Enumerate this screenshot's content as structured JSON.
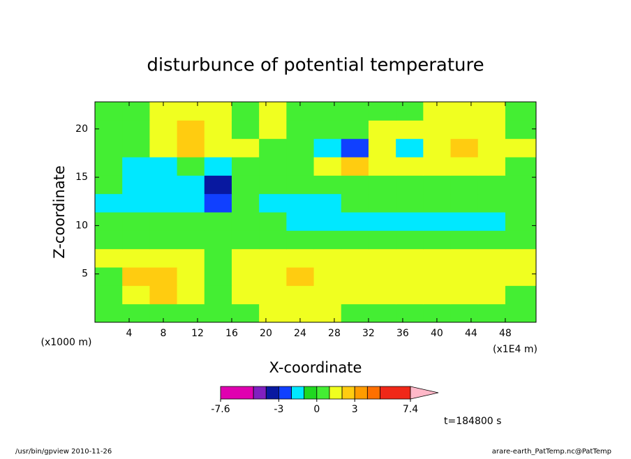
{
  "chart_data": {
    "type": "contourf",
    "title": "disturbunce of potential temperature",
    "xlabel": "X-coordinate",
    "ylabel": "Z-coordinate",
    "x_unit": "(x1E4 m)",
    "y_unit": "(x1000 m)",
    "x": [
      1.6,
      4.8,
      8,
      11.2,
      14.4,
      17.6,
      20.8,
      24,
      27.2,
      30.4,
      33.6,
      36.8,
      40,
      43.2,
      46.4,
      49.6
    ],
    "y": [
      0.95,
      2.85,
      4.75,
      6.65,
      8.55,
      10.45,
      12.35,
      14.25,
      16.15,
      18.05,
      19.95,
      21.85
    ],
    "z": [
      [
        0.5,
        0.5,
        0.5,
        0.5,
        0.5,
        0.5,
        1.5,
        1.5,
        1.5,
        0.5,
        0.5,
        0.5,
        0.5,
        0.5,
        0.5,
        0.5
      ],
      [
        0.5,
        1.5,
        2.5,
        1.5,
        0.5,
        1.5,
        1.5,
        1.5,
        1.5,
        1.5,
        1.5,
        1.5,
        1.5,
        1.5,
        1.5,
        0.5
      ],
      [
        0.5,
        2.5,
        2.5,
        1.5,
        0.5,
        1.5,
        1.5,
        2.5,
        1.5,
        1.5,
        1.5,
        1.5,
        1.5,
        1.5,
        1.5,
        1.5
      ],
      [
        1.5,
        1.5,
        1.5,
        1.5,
        0.5,
        1.5,
        1.5,
        1.5,
        1.5,
        1.5,
        1.5,
        1.5,
        1.5,
        1.5,
        1.5,
        1.5
      ],
      [
        0.5,
        0.5,
        0.5,
        0.5,
        0.5,
        0.5,
        0.5,
        0.5,
        0.5,
        0.5,
        0.5,
        0.5,
        0.5,
        0.5,
        0.5,
        0.5
      ],
      [
        0.5,
        0.5,
        0.5,
        0.5,
        0.5,
        0.5,
        0.5,
        -1.5,
        -1.5,
        -1.5,
        -1.5,
        -1.5,
        -1.5,
        -1.5,
        -1.5,
        0.5
      ],
      [
        -1.5,
        -1.5,
        -1.5,
        -1.5,
        -2.5,
        0.5,
        -1.5,
        -1.5,
        -1.5,
        0.5,
        0.5,
        0.5,
        0.5,
        0.5,
        0.5,
        0.5
      ],
      [
        0.5,
        -1.5,
        -1.5,
        -1.5,
        -3.5,
        0.5,
        0.5,
        0.5,
        0.5,
        0.5,
        0.5,
        0.5,
        0.5,
        0.5,
        0.5,
        0.5
      ],
      [
        0.5,
        -1.5,
        -1.5,
        0.5,
        -1.5,
        0.5,
        0.5,
        0.5,
        1.5,
        2.5,
        1.5,
        1.5,
        1.5,
        1.5,
        1.5,
        0.5
      ],
      [
        0.5,
        0.5,
        1.5,
        2.5,
        1.5,
        1.5,
        0.5,
        0.5,
        -1.5,
        -2.5,
        1.5,
        -1.5,
        1.5,
        2.5,
        1.5,
        1.5
      ],
      [
        0.5,
        0.5,
        1.5,
        2.5,
        1.5,
        0.5,
        1.5,
        0.5,
        0.5,
        0.5,
        1.5,
        1.5,
        1.5,
        1.5,
        1.5,
        0.5
      ],
      [
        0.5,
        0.5,
        1.5,
        1.5,
        1.5,
        0.5,
        1.5,
        0.5,
        0.5,
        0.5,
        0.5,
        0.5,
        1.5,
        1.5,
        1.5,
        0.5
      ]
    ],
    "xlim": [
      0,
      51.6
    ],
    "ylim": [
      0,
      22.8
    ],
    "xticks": [
      4,
      8,
      12,
      16,
      20,
      24,
      28,
      32,
      36,
      40,
      44,
      48
    ],
    "yticks": [
      5,
      10,
      15,
      20
    ],
    "colorbar": {
      "bounds": [
        -7.6,
        -5,
        -4,
        -3,
        -2,
        -1,
        0,
        1,
        2,
        3,
        4,
        5,
        7.4
      ],
      "colors": [
        "#e000b0",
        "#8020c0",
        "#0818a0",
        "#1040ff",
        "#00e8ff",
        "#20d820",
        "#44ee33",
        "#f0ff20",
        "#ffcc10",
        "#ff9c00",
        "#ff7000",
        "#f02818"
      ],
      "extend_color": "#ff8070",
      "over_color": "#ffb8c8",
      "ticks": [
        -7.6,
        -3,
        0,
        3,
        7.4
      ]
    },
    "time_label": "t=184800 s",
    "footer_left": "/usr/bin/gpview  2010-11-26",
    "footer_right": "arare-earth_PatTemp.nc@PatTemp"
  }
}
